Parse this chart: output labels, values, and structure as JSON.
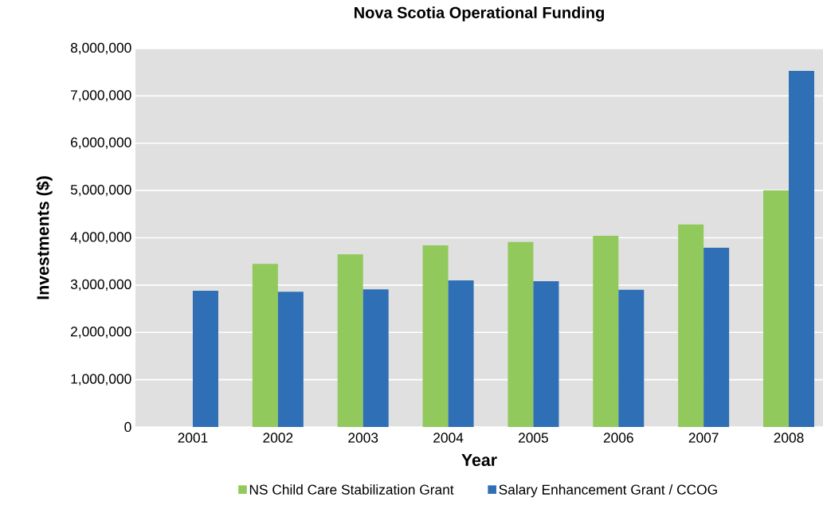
{
  "chart_data": {
    "type": "bar",
    "title": "Nova Scotia Operational Funding",
    "xlabel": "Year",
    "ylabel": "Investments ($)",
    "categories": [
      "2001",
      "2002",
      "2003",
      "2004",
      "2005",
      "2006",
      "2007",
      "2008"
    ],
    "series": [
      {
        "name": "NS Child Care Stabilization Grant",
        "color": "#92c95c",
        "values": [
          null,
          3450000,
          3650000,
          3840000,
          3910000,
          4040000,
          4280000,
          5000000
        ]
      },
      {
        "name": "Salary Enhancement Grant / CCOG",
        "color": "#2e6fb5",
        "values": [
          2880000,
          2860000,
          2910000,
          3100000,
          3080000,
          2900000,
          3790000,
          7530000
        ]
      }
    ],
    "ylim": [
      0,
      8000000
    ],
    "yticks": [
      0,
      {
        "value": 1000000,
        "label": "1,000,000"
      },
      {
        "value": 2000000,
        "label": "2,000,000"
      },
      {
        "value": 3000000,
        "label": "3,000,000"
      },
      {
        "value": 4000000,
        "label": "4,000,000"
      },
      {
        "value": 5000000,
        "label": "5,000,000"
      },
      {
        "value": 6000000,
        "label": "6,000,000"
      },
      {
        "value": 7000000,
        "label": "7,000,000"
      },
      {
        "value": 8000000,
        "label": "8,000,000"
      }
    ],
    "grid": "y",
    "legend": "bottom"
  }
}
